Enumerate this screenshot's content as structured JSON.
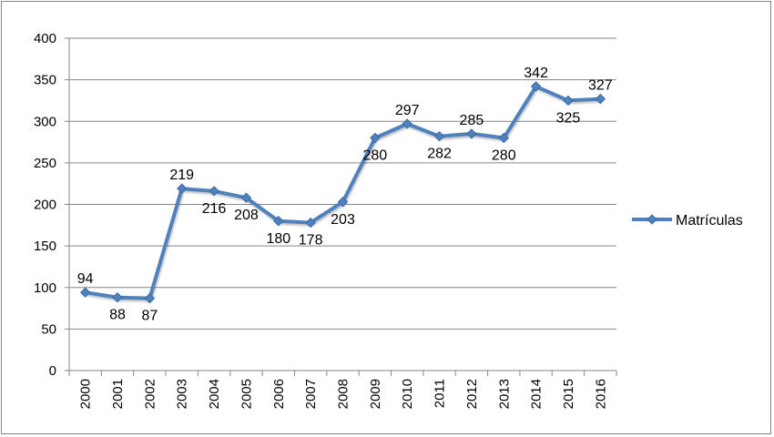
{
  "chart_data": {
    "type": "line",
    "categories": [
      "2000",
      "2001",
      "2002",
      "2003",
      "2004",
      "2005",
      "2006",
      "2007",
      "2008",
      "2009",
      "2010",
      "2011",
      "2012",
      "2013",
      "2014",
      "2015",
      "2016"
    ],
    "series": [
      {
        "name": "Matrículas",
        "values": [
          94,
          88,
          87,
          219,
          216,
          208,
          180,
          178,
          203,
          280,
          297,
          282,
          285,
          280,
          342,
          325,
          327
        ],
        "color": "#4f81bd"
      }
    ],
    "y_ticks": [
      "0",
      "50",
      "100",
      "150",
      "200",
      "250",
      "300",
      "350",
      "400"
    ],
    "ylim": [
      0,
      400
    ],
    "grid": true,
    "legend_position": "right",
    "data_labels": true
  }
}
